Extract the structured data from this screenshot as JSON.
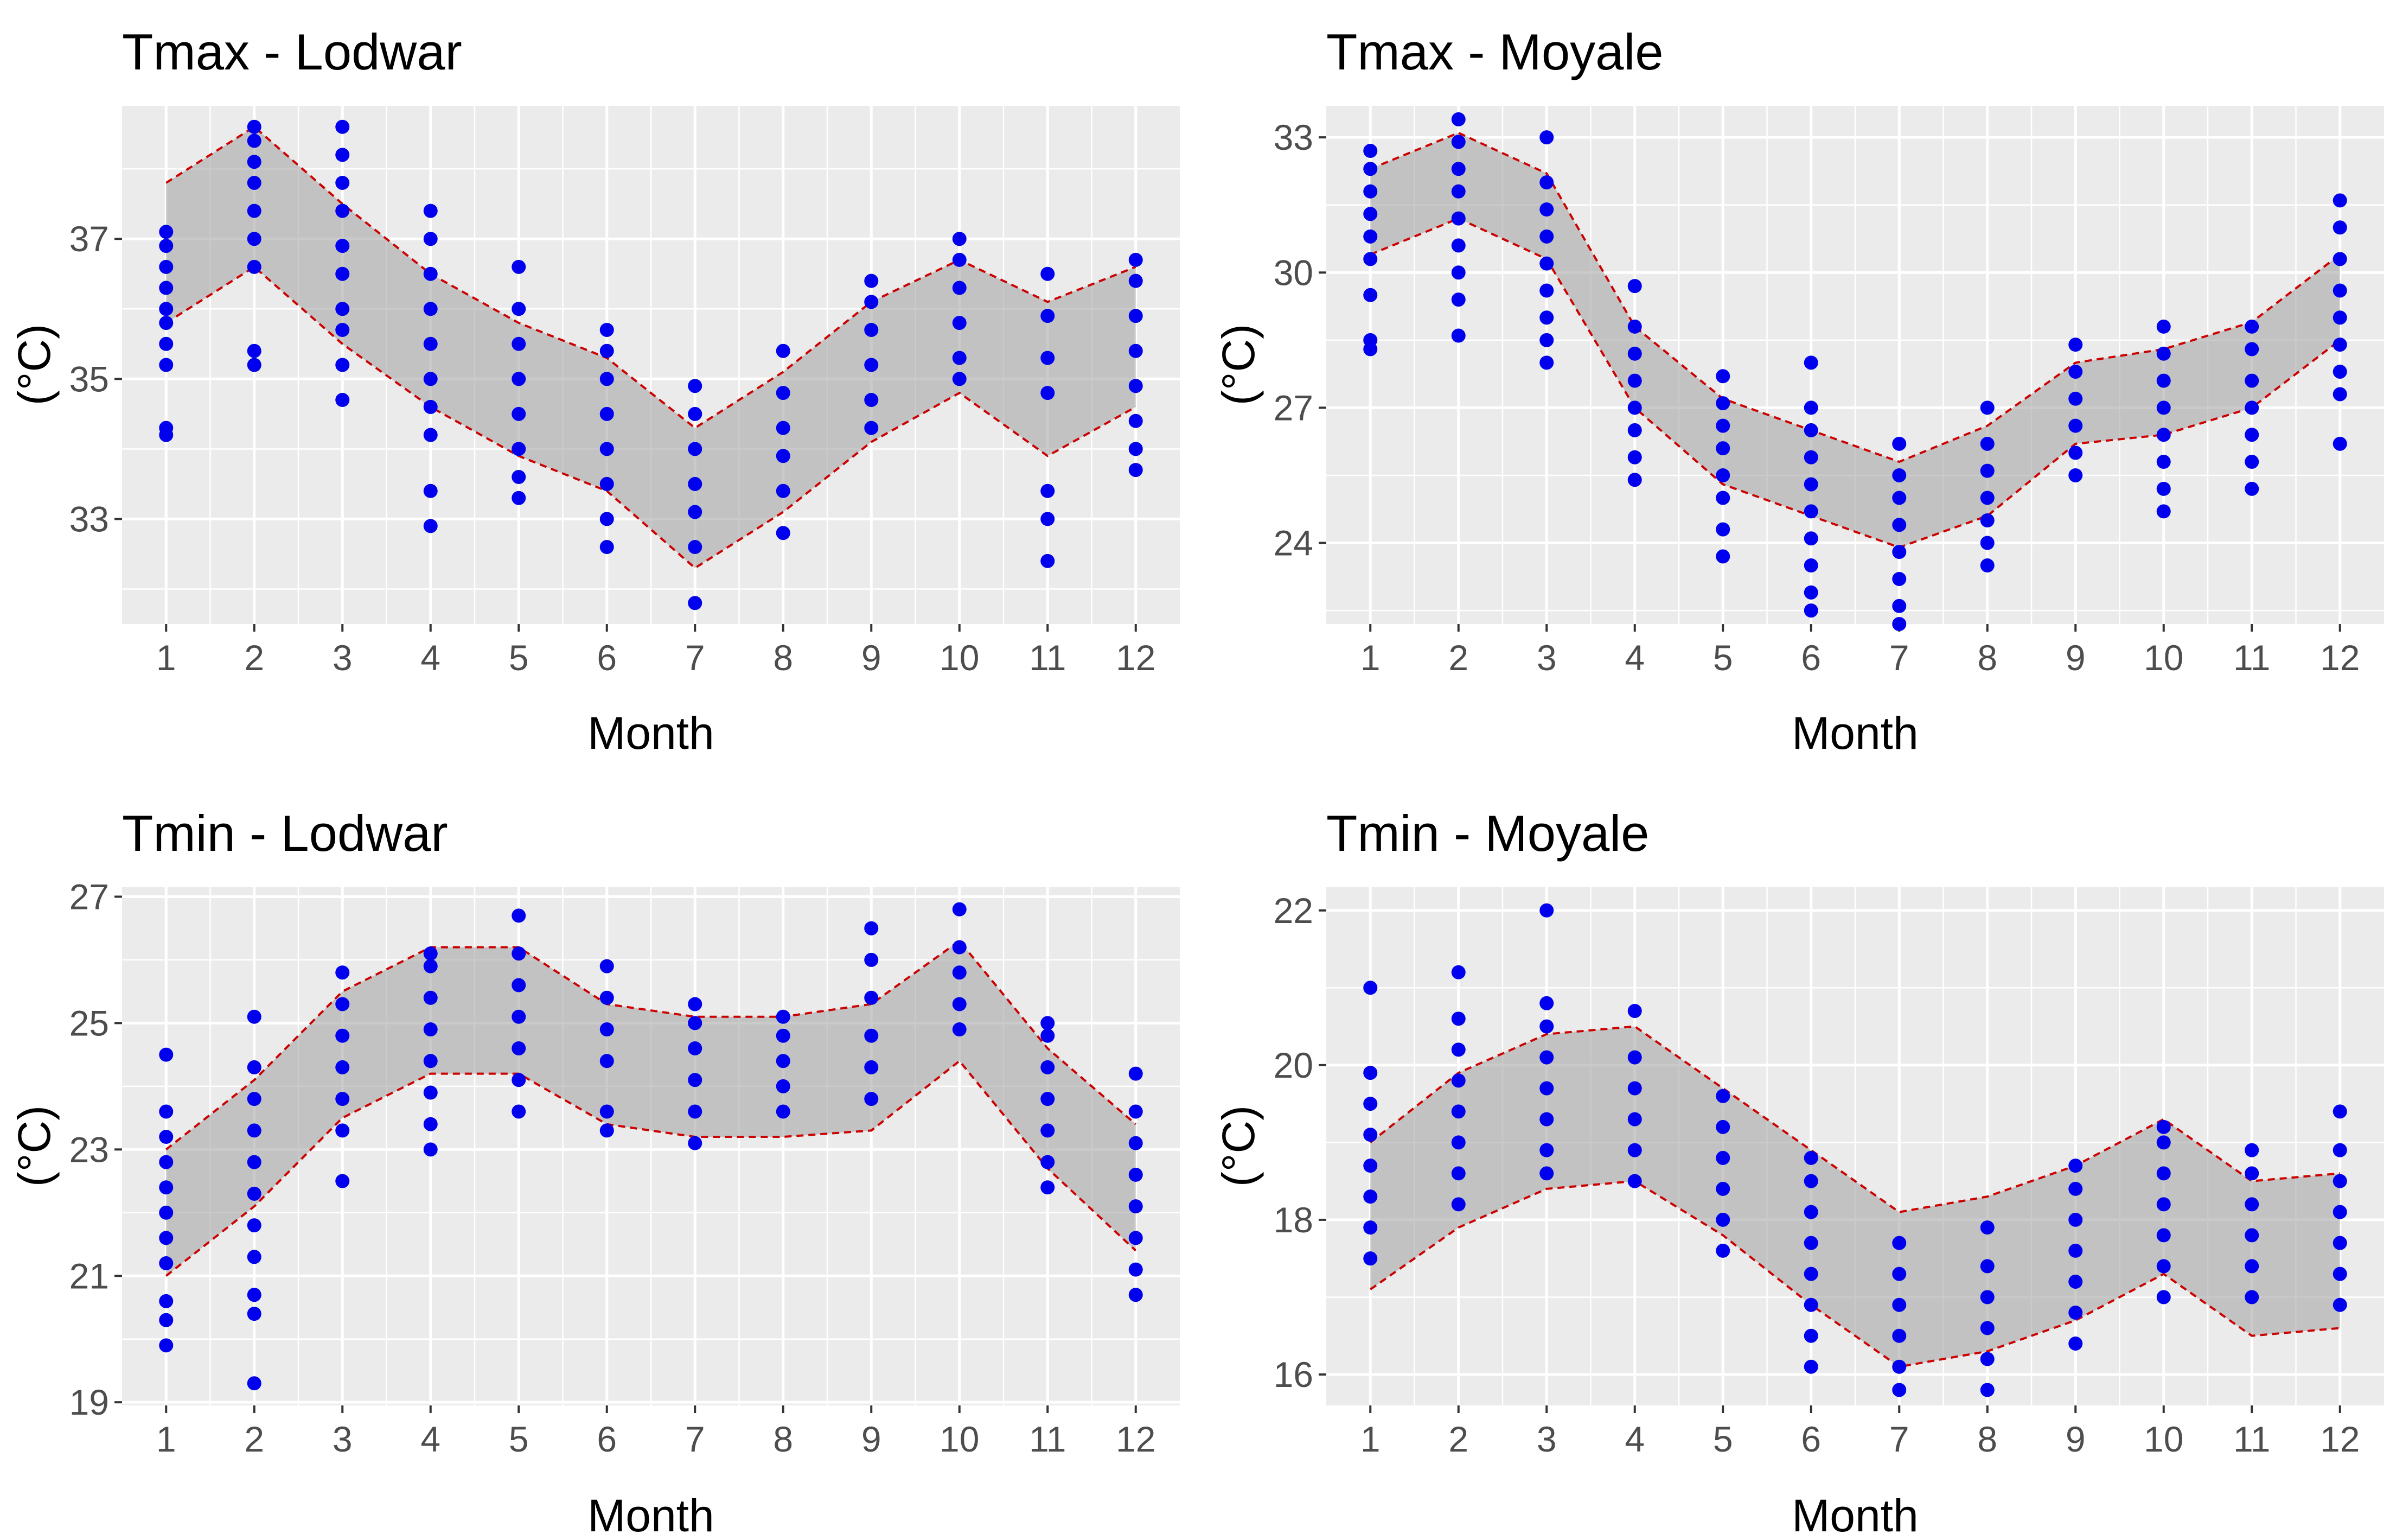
{
  "figure": {
    "xlabel": "Month",
    "ylabel": "(°C)"
  },
  "colors": {
    "points": "#0000ee",
    "bounds": "#cc0000",
    "ribbon": "#a6a6a6",
    "panel": "#ebebeb"
  },
  "chart_data": [
    {
      "type": "scatter",
      "title": "Tmax - Lodwar",
      "xlabel": "Month",
      "ylabel": "(°C)",
      "x": [
        1,
        2,
        3,
        4,
        5,
        6,
        7,
        8,
        9,
        10,
        11,
        12
      ],
      "xticks": [
        "1",
        "2",
        "3",
        "4",
        "5",
        "6",
        "7",
        "8",
        "9",
        "10",
        "11",
        "12"
      ],
      "xlim": [
        0.5,
        12.5
      ],
      "yticks": [
        33,
        35,
        37
      ],
      "ylim": [
        31.5,
        38.9
      ],
      "grid": true,
      "series": [
        {
          "name": "upper bound",
          "values": [
            37.8,
            38.6,
            37.5,
            36.5,
            35.8,
            35.3,
            34.3,
            35.1,
            36.1,
            36.7,
            36.1,
            36.6
          ]
        },
        {
          "name": "lower bound",
          "values": [
            35.8,
            36.6,
            35.5,
            34.6,
            33.9,
            33.4,
            32.3,
            33.1,
            34.1,
            34.8,
            33.9,
            34.6
          ]
        }
      ],
      "observations": [
        {
          "month": 1,
          "values": [
            34.2,
            34.3,
            35.2,
            35.5,
            35.8,
            36.0,
            36.3,
            36.6,
            36.9,
            37.1
          ]
        },
        {
          "month": 2,
          "values": [
            35.2,
            35.4,
            36.6,
            37.0,
            37.4,
            37.8,
            38.1,
            38.4,
            38.6
          ]
        },
        {
          "month": 3,
          "values": [
            34.7,
            35.2,
            35.7,
            36.0,
            36.5,
            36.9,
            37.4,
            37.8,
            38.2,
            38.6
          ]
        },
        {
          "month": 4,
          "values": [
            32.9,
            33.4,
            34.2,
            34.6,
            35.0,
            35.5,
            36.0,
            36.5,
            37.0,
            37.4
          ]
        },
        {
          "month": 5,
          "values": [
            33.3,
            33.6,
            34.0,
            34.5,
            35.0,
            35.5,
            36.0,
            36.6
          ]
        },
        {
          "month": 6,
          "values": [
            32.6,
            33.0,
            33.5,
            34.0,
            34.5,
            35.0,
            35.4,
            35.7
          ]
        },
        {
          "month": 7,
          "values": [
            31.8,
            32.6,
            33.1,
            33.5,
            34.0,
            34.5,
            34.9
          ]
        },
        {
          "month": 8,
          "values": [
            32.8,
            33.4,
            33.9,
            34.3,
            34.8,
            35.4
          ]
        },
        {
          "month": 9,
          "values": [
            34.3,
            34.7,
            35.2,
            35.7,
            36.1,
            36.4
          ]
        },
        {
          "month": 10,
          "values": [
            35.0,
            35.3,
            35.8,
            36.3,
            36.7,
            37.0
          ]
        },
        {
          "month": 11,
          "values": [
            32.4,
            33.0,
            33.4,
            34.8,
            35.3,
            35.9,
            36.5
          ]
        },
        {
          "month": 12,
          "values": [
            33.7,
            34.0,
            34.4,
            34.9,
            35.4,
            35.9,
            36.4,
            36.7
          ]
        }
      ]
    },
    {
      "type": "scatter",
      "title": "Tmax - Moyale",
      "xlabel": "Month",
      "ylabel": "(°C)",
      "x": [
        1,
        2,
        3,
        4,
        5,
        6,
        7,
        8,
        9,
        10,
        11,
        12
      ],
      "xticks": [
        "1",
        "2",
        "3",
        "4",
        "5",
        "6",
        "7",
        "8",
        "9",
        "10",
        "11",
        "12"
      ],
      "xlim": [
        0.5,
        12.5
      ],
      "yticks": [
        24,
        27,
        30,
        33
      ],
      "ylim": [
        22.2,
        33.7
      ],
      "grid": true,
      "series": [
        {
          "name": "upper bound",
          "values": [
            32.3,
            33.1,
            32.2,
            28.8,
            27.2,
            26.5,
            25.8,
            26.6,
            28.0,
            28.3,
            28.9,
            30.4
          ]
        },
        {
          "name": "lower bound",
          "values": [
            30.4,
            31.2,
            30.3,
            27.0,
            25.3,
            24.6,
            23.9,
            24.6,
            26.2,
            26.4,
            27.0,
            28.5
          ]
        }
      ],
      "observations": [
        {
          "month": 1,
          "values": [
            28.3,
            28.5,
            29.5,
            30.3,
            30.8,
            31.3,
            31.8,
            32.3,
            32.7
          ]
        },
        {
          "month": 2,
          "values": [
            28.6,
            29.4,
            30.0,
            30.6,
            31.2,
            31.8,
            32.3,
            32.9,
            33.4
          ]
        },
        {
          "month": 3,
          "values": [
            28.0,
            28.5,
            29.0,
            29.6,
            30.2,
            30.8,
            31.4,
            32.0,
            33.0
          ]
        },
        {
          "month": 4,
          "values": [
            25.4,
            25.9,
            26.5,
            27.0,
            27.6,
            28.2,
            28.8,
            29.7
          ]
        },
        {
          "month": 5,
          "values": [
            23.7,
            24.3,
            25.0,
            25.5,
            26.1,
            26.6,
            27.1,
            27.7
          ]
        },
        {
          "month": 6,
          "values": [
            22.5,
            22.9,
            23.5,
            24.1,
            24.7,
            25.3,
            25.9,
            26.5,
            27.0,
            28.0
          ]
        },
        {
          "month": 7,
          "values": [
            22.2,
            22.6,
            23.2,
            23.8,
            24.4,
            25.0,
            25.5,
            26.2
          ]
        },
        {
          "month": 8,
          "values": [
            23.5,
            24.0,
            24.5,
            25.0,
            25.6,
            26.2,
            27.0
          ]
        },
        {
          "month": 9,
          "values": [
            25.5,
            26.0,
            26.6,
            27.2,
            27.8,
            28.4
          ]
        },
        {
          "month": 10,
          "values": [
            24.7,
            25.2,
            25.8,
            26.4,
            27.0,
            27.6,
            28.2,
            28.8
          ]
        },
        {
          "month": 11,
          "values": [
            25.2,
            25.8,
            26.4,
            27.0,
            27.6,
            28.3,
            28.8
          ]
        },
        {
          "month": 12,
          "values": [
            26.2,
            27.3,
            27.8,
            28.4,
            29.0,
            29.6,
            30.3,
            31.0,
            31.6
          ]
        }
      ]
    },
    {
      "type": "scatter",
      "title": "Tmin - Lodwar",
      "xlabel": "Month",
      "ylabel": "(°C)",
      "x": [
        1,
        2,
        3,
        4,
        5,
        6,
        7,
        8,
        9,
        10,
        11,
        12
      ],
      "xticks": [
        "1",
        "2",
        "3",
        "4",
        "5",
        "6",
        "7",
        "8",
        "9",
        "10",
        "11",
        "12"
      ],
      "xlim": [
        0.5,
        12.5
      ],
      "yticks": [
        19,
        21,
        23,
        25,
        27
      ],
      "ylim": [
        18.95,
        27.15
      ],
      "grid": true,
      "series": [
        {
          "name": "upper bound",
          "values": [
            23.0,
            24.1,
            25.5,
            26.2,
            26.2,
            25.3,
            25.1,
            25.1,
            25.3,
            26.3,
            24.6,
            23.4
          ]
        },
        {
          "name": "lower bound",
          "values": [
            21.0,
            22.1,
            23.5,
            24.2,
            24.2,
            23.4,
            23.2,
            23.2,
            23.3,
            24.4,
            22.7,
            21.4
          ]
        }
      ],
      "observations": [
        {
          "month": 1,
          "values": [
            19.9,
            20.3,
            20.6,
            21.2,
            21.6,
            22.0,
            22.4,
            22.8,
            23.2,
            23.6,
            24.5
          ]
        },
        {
          "month": 2,
          "values": [
            19.3,
            20.4,
            20.7,
            21.3,
            21.8,
            22.3,
            22.8,
            23.3,
            23.8,
            24.3,
            25.1
          ]
        },
        {
          "month": 3,
          "values": [
            22.5,
            23.3,
            23.8,
            24.3,
            24.8,
            25.3,
            25.8
          ]
        },
        {
          "month": 4,
          "values": [
            23.0,
            23.4,
            23.9,
            24.4,
            24.9,
            25.4,
            25.9,
            26.1
          ]
        },
        {
          "month": 5,
          "values": [
            23.6,
            24.1,
            24.6,
            25.1,
            25.6,
            26.1,
            26.7
          ]
        },
        {
          "month": 6,
          "values": [
            23.3,
            23.6,
            24.4,
            24.9,
            25.4,
            25.9
          ]
        },
        {
          "month": 7,
          "values": [
            23.1,
            23.6,
            24.1,
            24.6,
            25.0,
            25.3
          ]
        },
        {
          "month": 8,
          "values": [
            23.6,
            24.0,
            24.4,
            24.8,
            25.1
          ]
        },
        {
          "month": 9,
          "values": [
            23.8,
            24.3,
            24.8,
            25.4,
            26.0,
            26.5
          ]
        },
        {
          "month": 10,
          "values": [
            24.9,
            25.3,
            25.8,
            26.2,
            26.8
          ]
        },
        {
          "month": 11,
          "values": [
            22.4,
            22.8,
            23.3,
            23.8,
            24.3,
            24.8,
            25.0
          ]
        },
        {
          "month": 12,
          "values": [
            20.7,
            21.1,
            21.6,
            22.1,
            22.6,
            23.1,
            23.6,
            24.2
          ]
        }
      ]
    },
    {
      "type": "scatter",
      "title": "Tmin - Moyale",
      "xlabel": "Month",
      "ylabel": "(°C)",
      "x": [
        1,
        2,
        3,
        4,
        5,
        6,
        7,
        8,
        9,
        10,
        11,
        12
      ],
      "xticks": [
        "1",
        "2",
        "3",
        "4",
        "5",
        "6",
        "7",
        "8",
        "9",
        "10",
        "11",
        "12"
      ],
      "xlim": [
        0.5,
        12.5
      ],
      "yticks": [
        16,
        18,
        20,
        22
      ],
      "ylim": [
        15.6,
        22.3
      ],
      "grid": true,
      "series": [
        {
          "name": "upper bound",
          "values": [
            19.0,
            19.9,
            20.4,
            20.5,
            19.7,
            18.9,
            18.1,
            18.3,
            18.7,
            19.3,
            18.5,
            18.6
          ]
        },
        {
          "name": "lower bound",
          "values": [
            17.1,
            17.9,
            18.4,
            18.5,
            17.8,
            16.9,
            16.1,
            16.3,
            16.7,
            17.3,
            16.5,
            16.6
          ]
        }
      ],
      "observations": [
        {
          "month": 1,
          "values": [
            17.5,
            17.9,
            18.3,
            18.7,
            19.1,
            19.5,
            19.9,
            21.0
          ]
        },
        {
          "month": 2,
          "values": [
            18.2,
            18.6,
            19.0,
            19.4,
            19.8,
            20.2,
            20.6,
            21.2
          ]
        },
        {
          "month": 3,
          "values": [
            18.6,
            18.9,
            19.3,
            19.7,
            20.1,
            20.5,
            20.8,
            22.0
          ]
        },
        {
          "month": 4,
          "values": [
            18.5,
            18.9,
            19.3,
            19.7,
            20.1,
            20.7
          ]
        },
        {
          "month": 5,
          "values": [
            17.6,
            18.0,
            18.4,
            18.8,
            19.2,
            19.6
          ]
        },
        {
          "month": 6,
          "values": [
            16.1,
            16.5,
            16.9,
            17.3,
            17.7,
            18.1,
            18.5,
            18.8
          ]
        },
        {
          "month": 7,
          "values": [
            15.8,
            16.1,
            16.5,
            16.9,
            17.3,
            17.7
          ]
        },
        {
          "month": 8,
          "values": [
            15.8,
            16.2,
            16.6,
            17.0,
            17.4,
            17.9
          ]
        },
        {
          "month": 9,
          "values": [
            16.4,
            16.8,
            17.2,
            17.6,
            18.0,
            18.4,
            18.7
          ]
        },
        {
          "month": 10,
          "values": [
            17.0,
            17.4,
            17.8,
            18.2,
            18.6,
            19.0,
            19.2
          ]
        },
        {
          "month": 11,
          "values": [
            17.0,
            17.4,
            17.8,
            18.2,
            18.6,
            18.9
          ]
        },
        {
          "month": 12,
          "values": [
            16.9,
            17.3,
            17.7,
            18.1,
            18.5,
            18.9,
            19.4
          ]
        }
      ]
    }
  ]
}
